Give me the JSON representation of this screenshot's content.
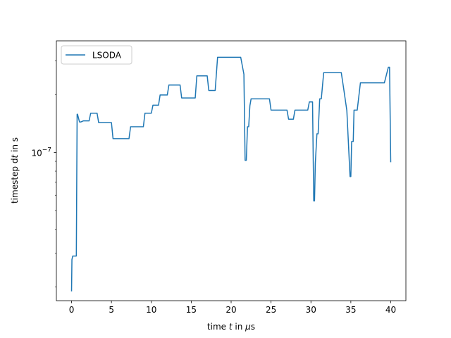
{
  "chart_data": {
    "type": "line",
    "xlabel": {
      "prefix": "time ",
      "var": "t",
      "mid": " in ",
      "unit_var": "μ",
      "unit_rest": "s"
    },
    "ylabel": {
      "prefix": "timestep ",
      "d": "d",
      "var": "t",
      "rest": " in s"
    },
    "xlim": [
      -1.9,
      41.9
    ],
    "ylim": [
      1.7e-08,
      3.8e-07
    ],
    "yscale": "log",
    "x_ticks": [
      0,
      5,
      10,
      15,
      20,
      25,
      30,
      35,
      40
    ],
    "y_ticks": [
      {
        "value": 1e-07,
        "base": "10",
        "exponent": "−7"
      }
    ],
    "legend": {
      "position": "top-left",
      "entries": [
        "LSODA"
      ]
    },
    "grid": false,
    "series": [
      {
        "name": "LSODA",
        "color": "#1f77b4",
        "x": [
          0.0,
          0.05,
          0.15,
          0.25,
          0.6,
          0.7,
          0.75,
          1.0,
          1.15,
          1.5,
          1.75,
          2.2,
          2.4,
          3.2,
          3.4,
          5.0,
          5.2,
          7.2,
          7.4,
          9.0,
          9.2,
          10.0,
          10.2,
          10.9,
          11.1,
          12.0,
          12.2,
          13.6,
          13.8,
          15.5,
          15.7,
          17.0,
          17.2,
          18.0,
          18.3,
          19.1,
          19.3,
          21.2,
          21.6,
          21.75,
          21.9,
          22.05,
          22.2,
          22.35,
          22.5,
          24.8,
          25.0,
          27.0,
          27.2,
          27.8,
          28.0,
          29.6,
          29.8,
          30.2,
          30.35,
          30.45,
          30.55,
          30.75,
          30.9,
          31.1,
          31.3,
          31.6,
          31.8,
          33.8,
          34.1,
          34.5,
          34.9,
          35.0,
          35.1,
          35.3,
          35.4,
          35.8,
          36.2,
          38.8,
          39.2,
          39.7,
          39.85,
          40.0
        ],
        "y": [
          1.9e-08,
          2.78e-08,
          2.9e-08,
          2.9e-08,
          2.9e-08,
          1.58e-07,
          1.58e-07,
          1.44e-07,
          1.44e-07,
          1.46e-07,
          1.46e-07,
          1.46e-07,
          1.6e-07,
          1.6e-07,
          1.43e-07,
          1.43e-07,
          1.18e-07,
          1.18e-07,
          1.36e-07,
          1.36e-07,
          1.6e-07,
          1.6e-07,
          1.76e-07,
          1.76e-07,
          1.99e-07,
          1.99e-07,
          2.24e-07,
          2.24e-07,
          1.92e-07,
          1.92e-07,
          2.5e-07,
          2.5e-07,
          2.1e-07,
          2.1e-07,
          3.12e-07,
          3.12e-07,
          3.12e-07,
          3.12e-07,
          2.55e-07,
          9.1e-08,
          9.1e-08,
          1.36e-07,
          1.36e-07,
          1.75e-07,
          1.9e-07,
          1.9e-07,
          1.66e-07,
          1.66e-07,
          1.49e-07,
          1.49e-07,
          1.66e-07,
          1.66e-07,
          1.83e-07,
          1.83e-07,
          5.6e-08,
          5.6e-08,
          8.8e-08,
          1.25e-07,
          1.25e-07,
          1.9e-07,
          1.9e-07,
          2.6e-07,
          2.6e-07,
          2.6e-07,
          2.15e-07,
          1.65e-07,
          7.5e-08,
          7.5e-08,
          1.14e-07,
          1.14e-07,
          1.66e-07,
          1.66e-07,
          2.3e-07,
          2.3e-07,
          2.3e-07,
          2.77e-07,
          2.77e-07,
          8.9e-08
        ]
      }
    ]
  }
}
